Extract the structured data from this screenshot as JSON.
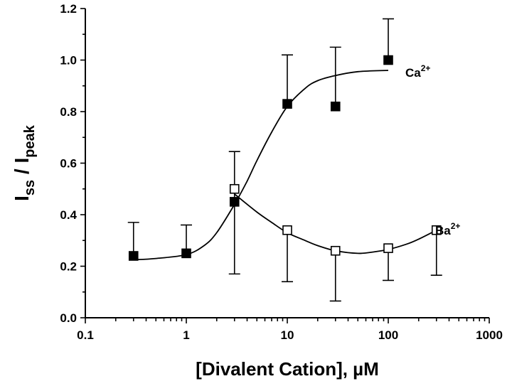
{
  "chart_data": {
    "type": "scatter",
    "title": "",
    "xlabel": "[Divalent Cation], µM",
    "ylabel": {
      "main1": "I",
      "sub1": "ss",
      "sep": " / ",
      "main2": "I",
      "sub2": "peak"
    },
    "x_scale": "log",
    "xlim": [
      0.1,
      1000
    ],
    "ylim": [
      0.0,
      1.2
    ],
    "x_ticks": [
      0.1,
      1,
      10,
      100,
      1000
    ],
    "x_tick_labels": [
      "0.1",
      "1",
      "10",
      "100",
      "1000"
    ],
    "y_ticks": [
      0.0,
      0.2,
      0.4,
      0.6,
      0.8,
      1.0,
      1.2
    ],
    "y_tick_labels": [
      "0.0",
      "0.2",
      "0.4",
      "0.6",
      "0.8",
      "1.0",
      "1.2"
    ],
    "grid": false,
    "series": [
      {
        "name": "Ca",
        "superscript": "2+",
        "marker": "filled-square",
        "x": [
          0.3,
          1,
          3,
          10,
          30,
          100
        ],
        "y": [
          0.24,
          0.25,
          0.45,
          0.83,
          0.82,
          1.0
        ],
        "error_upper": [
          0.37,
          0.36,
          null,
          1.02,
          1.05,
          1.16
        ],
        "fit": [
          [
            0.3,
            0.225
          ],
          [
            0.5,
            0.23
          ],
          [
            1,
            0.245
          ],
          [
            1.5,
            0.28
          ],
          [
            2,
            0.33
          ],
          [
            3,
            0.44
          ],
          [
            4,
            0.53
          ],
          [
            5,
            0.61
          ],
          [
            7,
            0.72
          ],
          [
            10,
            0.82
          ],
          [
            15,
            0.89
          ],
          [
            20,
            0.92
          ],
          [
            30,
            0.94
          ],
          [
            50,
            0.955
          ],
          [
            100,
            0.96
          ]
        ]
      },
      {
        "name": "Ba",
        "superscript": "2+",
        "marker": "open-square",
        "x": [
          3,
          10,
          30,
          100,
          300
        ],
        "y": [
          0.5,
          0.34,
          0.26,
          0.27,
          0.34
        ],
        "error_lower": [
          0.17,
          0.14,
          0.065,
          0.145,
          0.165
        ],
        "error_upper": [
          0.645,
          null,
          null,
          null,
          null
        ],
        "fit": [
          [
            3,
            0.48
          ],
          [
            5,
            0.41
          ],
          [
            7,
            0.37
          ],
          [
            10,
            0.33
          ],
          [
            15,
            0.3
          ],
          [
            20,
            0.28
          ],
          [
            30,
            0.26
          ],
          [
            50,
            0.25
          ],
          [
            70,
            0.255
          ],
          [
            100,
            0.265
          ],
          [
            150,
            0.285
          ],
          [
            200,
            0.305
          ],
          [
            300,
            0.34
          ]
        ]
      }
    ]
  }
}
